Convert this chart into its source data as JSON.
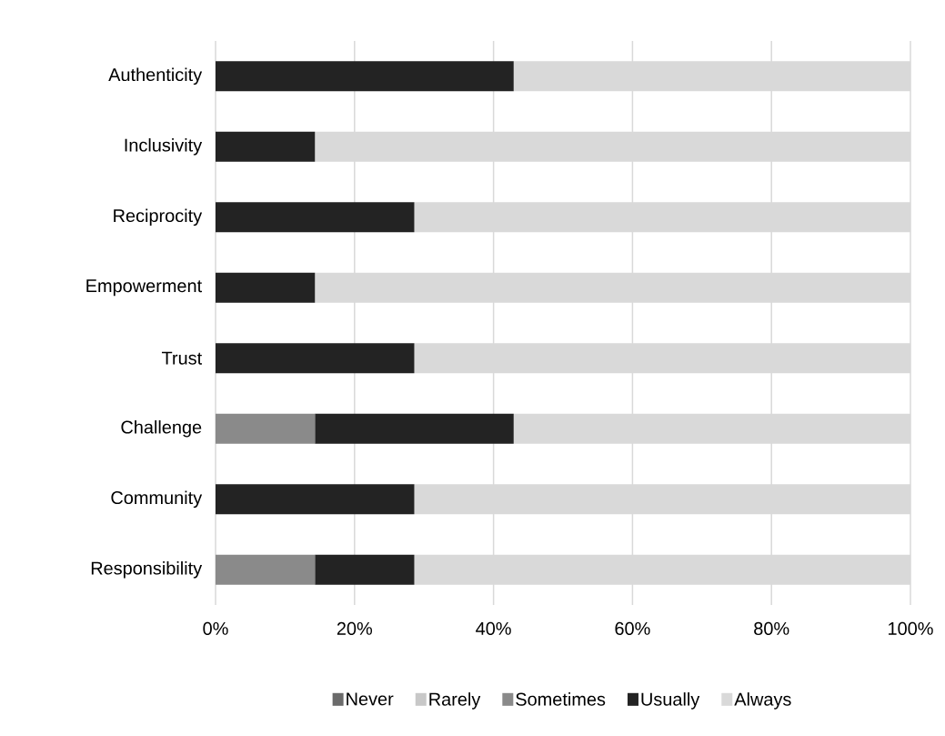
{
  "chart_data": {
    "type": "bar",
    "orientation": "horizontal",
    "stacked": true,
    "grid": "x",
    "legend": "bottom",
    "categories": [
      "Authenticity",
      "Inclusivity",
      "Reciprocity",
      "Empowerment",
      "Trust",
      "Challenge",
      "Community",
      "Responsibility"
    ],
    "series": [
      {
        "name": "Never",
        "color": "#6b6b6b",
        "values": [
          0,
          0,
          0,
          0,
          0,
          0,
          0,
          0
        ]
      },
      {
        "name": "Rarely",
        "color": "#c8c8c8",
        "values": [
          0,
          0,
          0,
          0,
          0,
          0,
          0,
          0
        ]
      },
      {
        "name": "Sometimes",
        "color": "#8a8a8a",
        "values": [
          0,
          0,
          0,
          0,
          0,
          14.3,
          0,
          14.3
        ]
      },
      {
        "name": "Usually",
        "color": "#232323",
        "values": [
          42.9,
          14.3,
          28.6,
          14.3,
          28.6,
          28.6,
          28.6,
          14.3
        ]
      },
      {
        "name": "Always",
        "color": "#d9d9d9",
        "values": [
          57.1,
          85.7,
          71.4,
          85.7,
          71.4,
          57.1,
          71.4,
          71.4
        ]
      }
    ],
    "xlim": [
      0,
      100
    ],
    "xticks": [
      {
        "value": 0,
        "label": "0%"
      },
      {
        "value": 20,
        "label": "20%"
      },
      {
        "value": 40,
        "label": "40%"
      },
      {
        "value": 60,
        "label": "60%"
      },
      {
        "value": 80,
        "label": "80%"
      },
      {
        "value": 100,
        "label": "100%"
      }
    ]
  }
}
